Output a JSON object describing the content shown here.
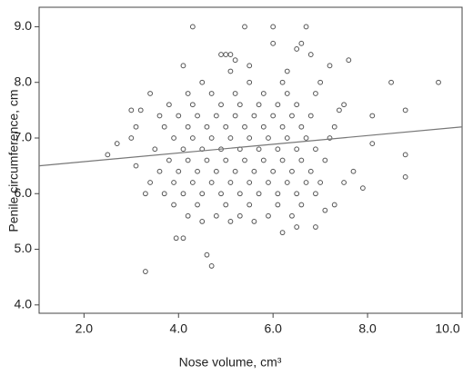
{
  "chart_data": {
    "type": "scatter",
    "x_label": "Nose volume, cm³",
    "y_label": "Penile circumference, cm",
    "xlim": [
      1.05,
      10.0
    ],
    "ylim": [
      3.85,
      9.35
    ],
    "xticks": [
      {
        "value": 2,
        "label": "2.0"
      },
      {
        "value": 4,
        "label": "4.0"
      },
      {
        "value": 6,
        "label": "6.0"
      },
      {
        "value": 8,
        "label": "8.0"
      },
      {
        "value": 10,
        "label": "10.0"
      }
    ],
    "yticks": [
      {
        "value": 4,
        "label": "4.0"
      },
      {
        "value": 5,
        "label": "5.0"
      },
      {
        "value": 6,
        "label": "6.0"
      },
      {
        "value": 7,
        "label": "7.0"
      },
      {
        "value": 8,
        "label": "8.0"
      },
      {
        "value": 9,
        "label": "9.0"
      }
    ],
    "color": "#555555",
    "trend_line": {
      "x": [
        1.05,
        10.0
      ],
      "y": [
        6.5,
        7.2
      ],
      "color": "#777777"
    },
    "points": [
      [
        3.3,
        4.6
      ],
      [
        4.1,
        5.2
      ],
      [
        3.95,
        5.2
      ],
      [
        4.6,
        4.9
      ],
      [
        4.7,
        4.7
      ],
      [
        4.3,
        9.0
      ],
      [
        5.4,
        9.0
      ],
      [
        6.0,
        9.0
      ],
      [
        6.7,
        9.0
      ],
      [
        6.0,
        8.7
      ],
      [
        6.6,
        8.7
      ],
      [
        6.5,
        8.6
      ],
      [
        6.8,
        8.5
      ],
      [
        5.0,
        8.5
      ],
      [
        4.9,
        8.5
      ],
      [
        5.1,
        8.5
      ],
      [
        5.2,
        8.4
      ],
      [
        5.5,
        8.3
      ],
      [
        4.1,
        8.3
      ],
      [
        7.2,
        8.3
      ],
      [
        7.6,
        8.4
      ],
      [
        8.5,
        8.0
      ],
      [
        9.5,
        8.0
      ],
      [
        8.8,
        7.5
      ],
      [
        8.1,
        7.4
      ],
      [
        8.8,
        6.7
      ],
      [
        8.8,
        6.3
      ],
      [
        7.9,
        6.1
      ],
      [
        8.1,
        6.9
      ],
      [
        2.5,
        6.7
      ],
      [
        2.7,
        6.9
      ],
      [
        3.0,
        7.5
      ],
      [
        3.1,
        7.2
      ],
      [
        3.0,
        7.0
      ],
      [
        3.1,
        6.5
      ],
      [
        3.4,
        7.8
      ],
      [
        3.2,
        7.5
      ],
      [
        3.6,
        7.4
      ],
      [
        3.3,
        6.0
      ],
      [
        3.4,
        6.2
      ],
      [
        6.2,
        5.3
      ],
      [
        6.5,
        5.4
      ],
      [
        6.9,
        5.4
      ],
      [
        7.3,
        5.8
      ],
      [
        7.1,
        5.7
      ],
      [
        7.5,
        6.2
      ],
      [
        7.7,
        6.4
      ],
      [
        7.4,
        7.5
      ],
      [
        7.3,
        7.2
      ],
      [
        7.5,
        7.6
      ],
      [
        3.7,
        6.0
      ],
      [
        4.1,
        6.0
      ],
      [
        4.5,
        6.0
      ],
      [
        4.9,
        6.0
      ],
      [
        5.3,
        6.0
      ],
      [
        5.7,
        6.0
      ],
      [
        6.1,
        6.0
      ],
      [
        6.5,
        6.0
      ],
      [
        6.9,
        6.0
      ],
      [
        3.9,
        6.2
      ],
      [
        4.3,
        6.2
      ],
      [
        4.7,
        6.2
      ],
      [
        5.1,
        6.2
      ],
      [
        5.5,
        6.2
      ],
      [
        5.9,
        6.2
      ],
      [
        6.3,
        6.2
      ],
      [
        6.7,
        6.2
      ],
      [
        7.0,
        6.2
      ],
      [
        3.6,
        6.4
      ],
      [
        4.0,
        6.4
      ],
      [
        4.4,
        6.4
      ],
      [
        4.8,
        6.4
      ],
      [
        5.2,
        6.4
      ],
      [
        5.6,
        6.4
      ],
      [
        6.0,
        6.4
      ],
      [
        6.4,
        6.4
      ],
      [
        6.8,
        6.4
      ],
      [
        3.8,
        6.6
      ],
      [
        4.2,
        6.6
      ],
      [
        4.6,
        6.6
      ],
      [
        5.0,
        6.6
      ],
      [
        5.4,
        6.6
      ],
      [
        5.8,
        6.6
      ],
      [
        6.2,
        6.6
      ],
      [
        6.6,
        6.6
      ],
      [
        7.1,
        6.6
      ],
      [
        3.5,
        6.8
      ],
      [
        4.1,
        6.8
      ],
      [
        4.5,
        6.8
      ],
      [
        4.9,
        6.8
      ],
      [
        5.3,
        6.8
      ],
      [
        5.7,
        6.8
      ],
      [
        6.1,
        6.8
      ],
      [
        6.5,
        6.8
      ],
      [
        6.9,
        6.8
      ],
      [
        3.9,
        7.0
      ],
      [
        4.3,
        7.0
      ],
      [
        4.7,
        7.0
      ],
      [
        5.1,
        7.0
      ],
      [
        5.5,
        7.0
      ],
      [
        5.9,
        7.0
      ],
      [
        6.3,
        7.0
      ],
      [
        6.7,
        7.0
      ],
      [
        7.2,
        7.0
      ],
      [
        3.7,
        7.2
      ],
      [
        4.2,
        7.2
      ],
      [
        4.6,
        7.2
      ],
      [
        5.0,
        7.2
      ],
      [
        5.4,
        7.2
      ],
      [
        5.8,
        7.2
      ],
      [
        6.2,
        7.2
      ],
      [
        6.6,
        7.2
      ],
      [
        4.0,
        7.4
      ],
      [
        4.4,
        7.4
      ],
      [
        4.8,
        7.4
      ],
      [
        5.2,
        7.4
      ],
      [
        5.6,
        7.4
      ],
      [
        6.0,
        7.4
      ],
      [
        6.4,
        7.4
      ],
      [
        6.8,
        7.4
      ],
      [
        3.8,
        7.6
      ],
      [
        4.3,
        7.6
      ],
      [
        4.9,
        7.6
      ],
      [
        5.3,
        7.6
      ],
      [
        5.7,
        7.6
      ],
      [
        6.1,
        7.6
      ],
      [
        6.5,
        7.6
      ],
      [
        4.2,
        7.8
      ],
      [
        4.7,
        7.8
      ],
      [
        5.2,
        7.8
      ],
      [
        5.8,
        7.8
      ],
      [
        6.3,
        7.8
      ],
      [
        6.9,
        7.8
      ],
      [
        3.9,
        5.8
      ],
      [
        4.4,
        5.8
      ],
      [
        5.0,
        5.8
      ],
      [
        5.5,
        5.8
      ],
      [
        6.1,
        5.8
      ],
      [
        6.6,
        5.8
      ],
      [
        4.2,
        5.6
      ],
      [
        4.8,
        5.6
      ],
      [
        5.3,
        5.6
      ],
      [
        5.9,
        5.6
      ],
      [
        6.4,
        5.6
      ],
      [
        4.5,
        5.5
      ],
      [
        5.1,
        5.5
      ],
      [
        5.6,
        5.5
      ],
      [
        4.5,
        8.0
      ],
      [
        5.5,
        8.0
      ],
      [
        6.2,
        8.0
      ],
      [
        7.0,
        8.0
      ],
      [
        5.1,
        8.2
      ],
      [
        6.3,
        8.2
      ]
    ]
  }
}
